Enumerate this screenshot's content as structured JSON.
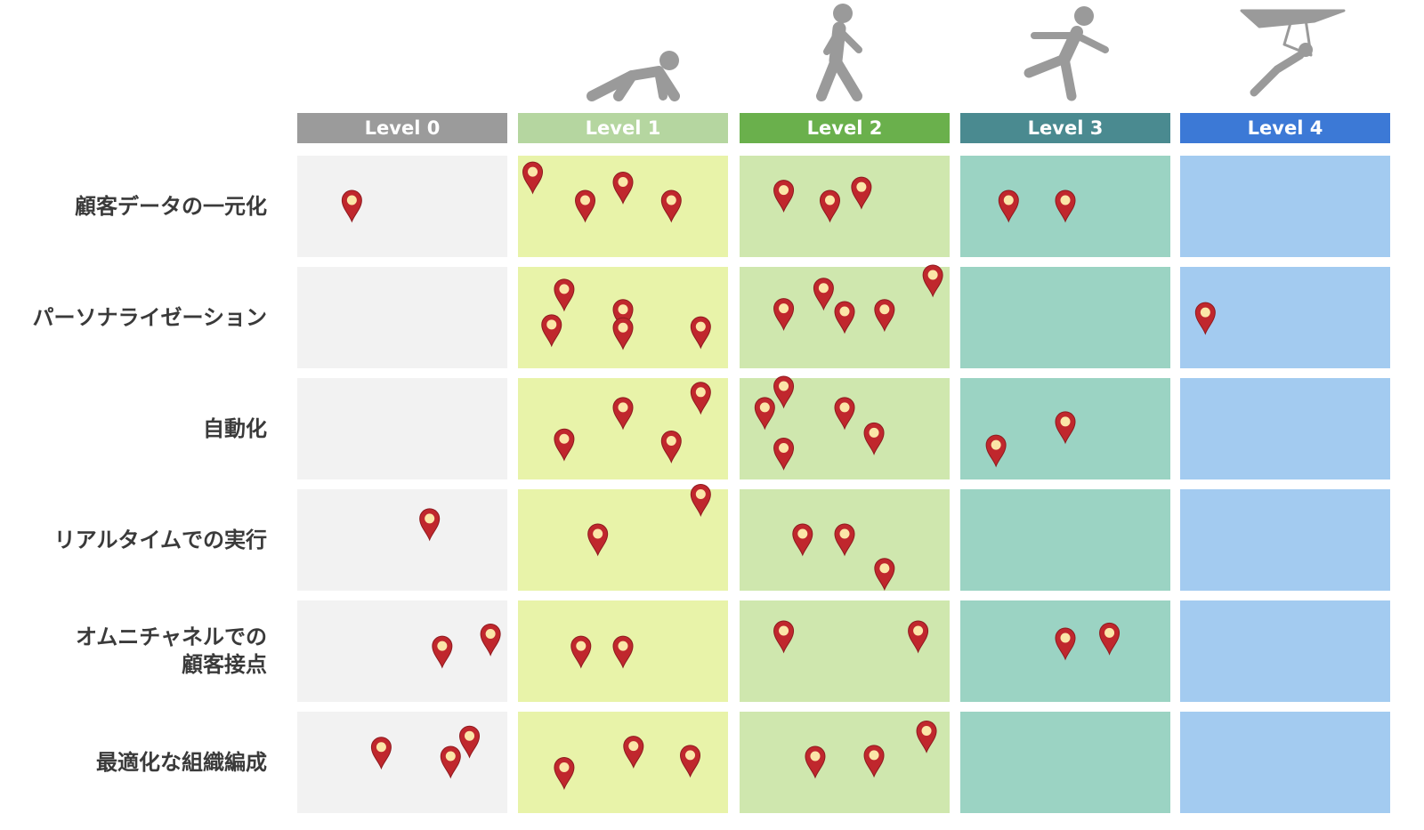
{
  "chart_data": {
    "type": "scatter",
    "description_axis": "maturity levels (columns) x capabilities (rows); each pin is one organisation",
    "levels": [
      {
        "label": "Level 0",
        "figure": "none"
      },
      {
        "label": "Level 1",
        "figure": "crawling-person-icon"
      },
      {
        "label": "Level 2",
        "figure": "walking-person-icon"
      },
      {
        "label": "Level 3",
        "figure": "running-person-icon"
      },
      {
        "label": "Level 4",
        "figure": "hang-glider-icon"
      }
    ],
    "rows": [
      {
        "label": [
          "顧客データの一元化"
        ],
        "pins": [
          [
            0,
            0.26,
            0.5
          ],
          [
            1,
            0.07,
            0.22
          ],
          [
            1,
            0.32,
            0.5
          ],
          [
            1,
            0.5,
            0.32
          ],
          [
            1,
            0.73,
            0.5
          ],
          [
            2,
            0.21,
            0.4
          ],
          [
            2,
            0.43,
            0.5
          ],
          [
            2,
            0.58,
            0.37
          ],
          [
            3,
            0.23,
            0.5
          ],
          [
            3,
            0.5,
            0.5
          ]
        ]
      },
      {
        "label": [
          "パーソナライゼーション"
        ],
        "pins": [
          [
            1,
            0.22,
            0.28
          ],
          [
            1,
            0.16,
            0.63
          ],
          [
            1,
            0.5,
            0.48
          ],
          [
            1,
            0.5,
            0.66
          ],
          [
            1,
            0.87,
            0.65
          ],
          [
            2,
            0.21,
            0.47
          ],
          [
            2,
            0.4,
            0.27
          ],
          [
            2,
            0.5,
            0.5
          ],
          [
            2,
            0.69,
            0.48
          ],
          [
            2,
            0.92,
            0.14
          ],
          [
            4,
            0.12,
            0.51
          ]
        ]
      },
      {
        "label": [
          "自動化"
        ],
        "pins": [
          [
            1,
            0.22,
            0.66
          ],
          [
            1,
            0.5,
            0.35
          ],
          [
            1,
            0.73,
            0.68
          ],
          [
            1,
            0.87,
            0.2
          ],
          [
            2,
            0.12,
            0.35
          ],
          [
            2,
            0.21,
            0.14
          ],
          [
            2,
            0.5,
            0.35
          ],
          [
            2,
            0.64,
            0.6
          ],
          [
            2,
            0.21,
            0.75
          ],
          [
            3,
            0.17,
            0.72
          ],
          [
            3,
            0.5,
            0.49
          ]
        ]
      },
      {
        "label": [
          "リアルタイムでの実行"
        ],
        "pins": [
          [
            0,
            0.63,
            0.35
          ],
          [
            1,
            0.38,
            0.5
          ],
          [
            1,
            0.87,
            0.11
          ],
          [
            2,
            0.3,
            0.5
          ],
          [
            2,
            0.5,
            0.5
          ],
          [
            2,
            0.69,
            0.84
          ]
        ]
      },
      {
        "label": [
          "オムニチャネルでの",
          "顧客接点"
        ],
        "pins": [
          [
            0,
            0.69,
            0.51
          ],
          [
            0,
            0.92,
            0.39
          ],
          [
            1,
            0.3,
            0.51
          ],
          [
            1,
            0.5,
            0.51
          ],
          [
            2,
            0.21,
            0.36
          ],
          [
            2,
            0.85,
            0.36
          ],
          [
            3,
            0.5,
            0.43
          ],
          [
            3,
            0.71,
            0.38
          ]
        ]
      },
      {
        "label": [
          "最適化な組織編成"
        ],
        "pins": [
          [
            0,
            0.4,
            0.41
          ],
          [
            0,
            0.73,
            0.5
          ],
          [
            0,
            0.82,
            0.3
          ],
          [
            1,
            0.22,
            0.61
          ],
          [
            1,
            0.55,
            0.4
          ],
          [
            1,
            0.82,
            0.49
          ],
          [
            2,
            0.36,
            0.5
          ],
          [
            2,
            0.64,
            0.49
          ],
          [
            2,
            0.89,
            0.25
          ]
        ]
      }
    ]
  },
  "colors": {
    "label_text": "#3a3a3a",
    "header": [
      "#9b9b9b",
      "#b5d6a0",
      "#6ab04c",
      "#4a8a90",
      "#3c79d6"
    ],
    "cell": [
      "#f2f2f2",
      "#e8f3a9",
      "#cfe7ae",
      "#9bd3c3",
      "#a3cbf0"
    ],
    "figure": "#9a9a9a",
    "pin": "#c0272d",
    "pin_core": "#fbe6a8"
  }
}
